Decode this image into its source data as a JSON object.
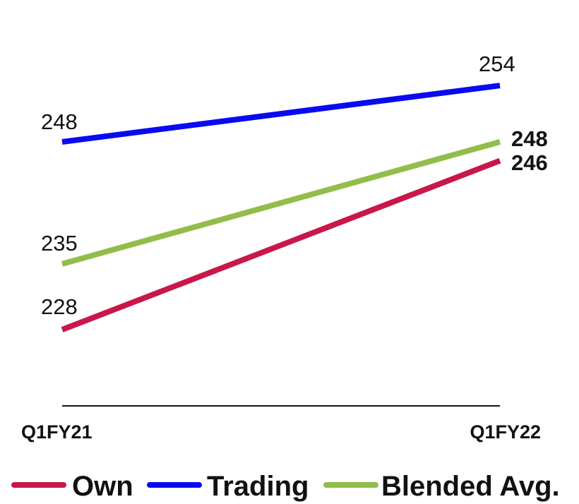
{
  "chart_data": {
    "type": "line",
    "categories": [
      "Q1FY21",
      "Q1FY22"
    ],
    "series": [
      {
        "name": "Own",
        "values": [
          228,
          246
        ],
        "color": "#c8174a"
      },
      {
        "name": "Trading",
        "values": [
          248,
          254
        ],
        "color": "#0a0af0"
      },
      {
        "name": "Blended Avg.",
        "values": [
          235,
          248
        ],
        "color": "#92bd4b"
      }
    ],
    "value_labels": [
      {
        "series": "Own",
        "index": 0,
        "text": "228",
        "bold": false
      },
      {
        "series": "Own",
        "index": 1,
        "text": "246",
        "bold": true
      },
      {
        "series": "Trading",
        "index": 0,
        "text": "248",
        "bold": false
      },
      {
        "series": "Trading",
        "index": 1,
        "text": "254",
        "bold": false
      },
      {
        "series": "Blended Avg.",
        "index": 0,
        "text": "235",
        "bold": false
      },
      {
        "series": "Blended Avg.",
        "index": 1,
        "text": "248",
        "bold": true
      }
    ],
    "title": "",
    "xlabel": "",
    "ylabel": "",
    "legend_position": "bottom",
    "grid": false
  }
}
